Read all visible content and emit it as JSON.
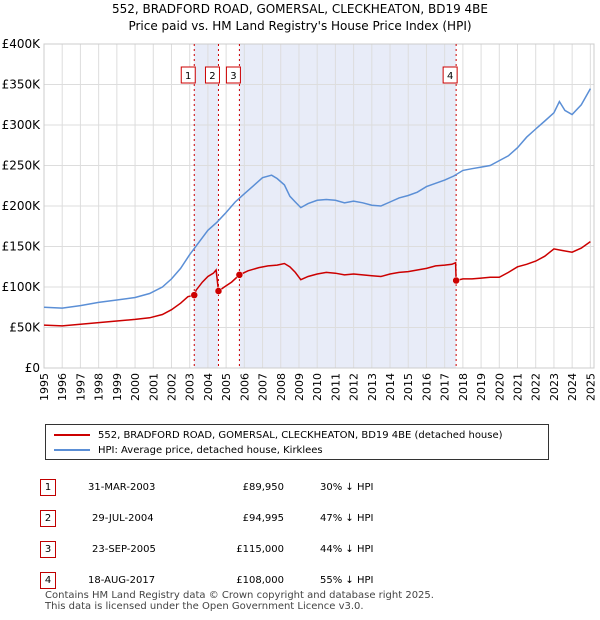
{
  "title_line1": "552, BRADFORD ROAD, GOMERSAL, CLECKHEATON, BD19 4BE",
  "title_line2": "Price paid vs. HM Land Registry's House Price Index (HPI)",
  "chart_data": {
    "type": "line",
    "title": "552, BRADFORD ROAD, GOMERSAL, CLECKHEATON, BD19 4BE — Price paid vs. HM Land Registry's House Price Index (HPI)",
    "xlim": [
      1995,
      2025.2
    ],
    "ylim": [
      0,
      400000
    ],
    "x_ticks": [
      1995,
      1996,
      1997,
      1998,
      1999,
      2000,
      2001,
      2002,
      2003,
      2004,
      2005,
      2006,
      2007,
      2008,
      2009,
      2010,
      2011,
      2012,
      2013,
      2014,
      2015,
      2016,
      2017,
      2018,
      2019,
      2020,
      2021,
      2022,
      2023,
      2024,
      2025
    ],
    "y_ticks": [
      0,
      50000,
      100000,
      150000,
      200000,
      250000,
      300000,
      350000,
      400000
    ],
    "y_tick_labels": [
      "£0",
      "£50K",
      "£100K",
      "£150K",
      "£200K",
      "£250K",
      "£300K",
      "£350K",
      "£400K"
    ],
    "grid": true,
    "shaded_ranges": [
      [
        2003.25,
        2004.58
      ],
      [
        2005.73,
        2017.63
      ]
    ],
    "colors": {
      "property": "#cc0000",
      "hpi": "#5b8fd6",
      "shade": "#e8ecf8",
      "grid": "#dddddd"
    },
    "series": [
      {
        "name": "552, BRADFORD ROAD, GOMERSAL, CLECKHEATON, BD19 4BE (detached house)",
        "x": [
          1995,
          1996,
          1997,
          1998,
          1999,
          2000,
          2000.8,
          2001.5,
          2002,
          2002.5,
          2002.9,
          2003.25,
          2003.35,
          2003.7,
          2004,
          2004.3,
          2004.45,
          2004.58,
          2004.9,
          2005.3,
          2005.73,
          2006.2,
          2006.8,
          2007.3,
          2007.8,
          2008.2,
          2008.5,
          2008.8,
          2009.1,
          2009.5,
          2010,
          2010.5,
          2011,
          2011.5,
          2012,
          2012.5,
          2013,
          2013.5,
          2014,
          2014.5,
          2015,
          2015.5,
          2016,
          2016.5,
          2017,
          2017.4,
          2017.6,
          2017.63,
          2018,
          2018.5,
          2019,
          2019.5,
          2020,
          2020.5,
          2021,
          2021.5,
          2022,
          2022.5,
          2023,
          2023.5,
          2024,
          2024.5,
          2025
        ],
        "values": [
          53000,
          52000,
          54000,
          56000,
          58000,
          60000,
          62000,
          66000,
          72000,
          80000,
          88000,
          89950,
          96000,
          106000,
          113000,
          117000,
          121000,
          94995,
          100000,
          106000,
          115000,
          120000,
          124000,
          126000,
          127000,
          129000,
          125000,
          118000,
          109000,
          113000,
          116000,
          118000,
          117000,
          115000,
          116000,
          115000,
          114000,
          113000,
          116000,
          118000,
          119000,
          121000,
          123000,
          126000,
          127000,
          128000,
          130000,
          108000,
          110000,
          110000,
          111000,
          112000,
          112000,
          118000,
          125000,
          128000,
          132000,
          138000,
          147000,
          145000,
          143000,
          148000,
          156000
        ]
      },
      {
        "name": "HPI: Average price, detached house, Kirklees",
        "x": [
          1995,
          1996,
          1997,
          1998,
          1999,
          2000,
          2000.8,
          2001.5,
          2002,
          2002.5,
          2003,
          2003.5,
          2004,
          2004.5,
          2005,
          2005.5,
          2006,
          2006.5,
          2007,
          2007.5,
          2007.8,
          2008.2,
          2008.5,
          2008.8,
          2009.1,
          2009.5,
          2010,
          2010.5,
          2011,
          2011.5,
          2012,
          2012.5,
          2013,
          2013.5,
          2014,
          2014.5,
          2015,
          2015.5,
          2016,
          2016.5,
          2017,
          2017.5,
          2018,
          2018.5,
          2019,
          2019.5,
          2020,
          2020.5,
          2021,
          2021.5,
          2022,
          2022.5,
          2023,
          2023.3,
          2023.6,
          2024,
          2024.5,
          2025
        ],
        "values": [
          75000,
          74000,
          77000,
          81000,
          84000,
          87000,
          92000,
          100000,
          110000,
          123000,
          140000,
          155000,
          170000,
          180000,
          192000,
          205000,
          215000,
          225000,
          235000,
          238000,
          234000,
          226000,
          212000,
          205000,
          198000,
          203000,
          207000,
          208000,
          207000,
          204000,
          206000,
          204000,
          201000,
          200000,
          205000,
          210000,
          213000,
          217000,
          224000,
          228000,
          232000,
          237000,
          244000,
          246000,
          248000,
          250000,
          256000,
          262000,
          272000,
          285000,
          295000,
          305000,
          315000,
          329000,
          318000,
          313000,
          325000,
          345000
        ]
      }
    ],
    "sale_markers": [
      {
        "label": "1",
        "x": 2003.25,
        "value": 89950
      },
      {
        "label": "2",
        "x": 2004.58,
        "value": 94995
      },
      {
        "label": "3",
        "x": 2005.73,
        "value": 115000
      },
      {
        "label": "4",
        "x": 2017.63,
        "value": 108000
      }
    ]
  },
  "legend": {
    "property_label": "552, BRADFORD ROAD, GOMERSAL, CLECKHEATON, BD19 4BE (detached house)",
    "hpi_label": "HPI: Average price, detached house, Kirklees"
  },
  "sales": [
    {
      "num": "1",
      "date": "31-MAR-2003",
      "price": "£89,950",
      "hpi": "30% ↓ HPI"
    },
    {
      "num": "2",
      "date": "29-JUL-2004",
      "price": "£94,995",
      "hpi": "47% ↓ HPI"
    },
    {
      "num": "3",
      "date": "23-SEP-2005",
      "price": "£115,000",
      "hpi": "44% ↓ HPI"
    },
    {
      "num": "4",
      "date": "18-AUG-2017",
      "price": "£108,000",
      "hpi": "55% ↓ HPI"
    }
  ],
  "footer": {
    "line1": "Contains HM Land Registry data © Crown copyright and database right 2025.",
    "line2": "This data is licensed under the Open Government Licence v3.0."
  }
}
